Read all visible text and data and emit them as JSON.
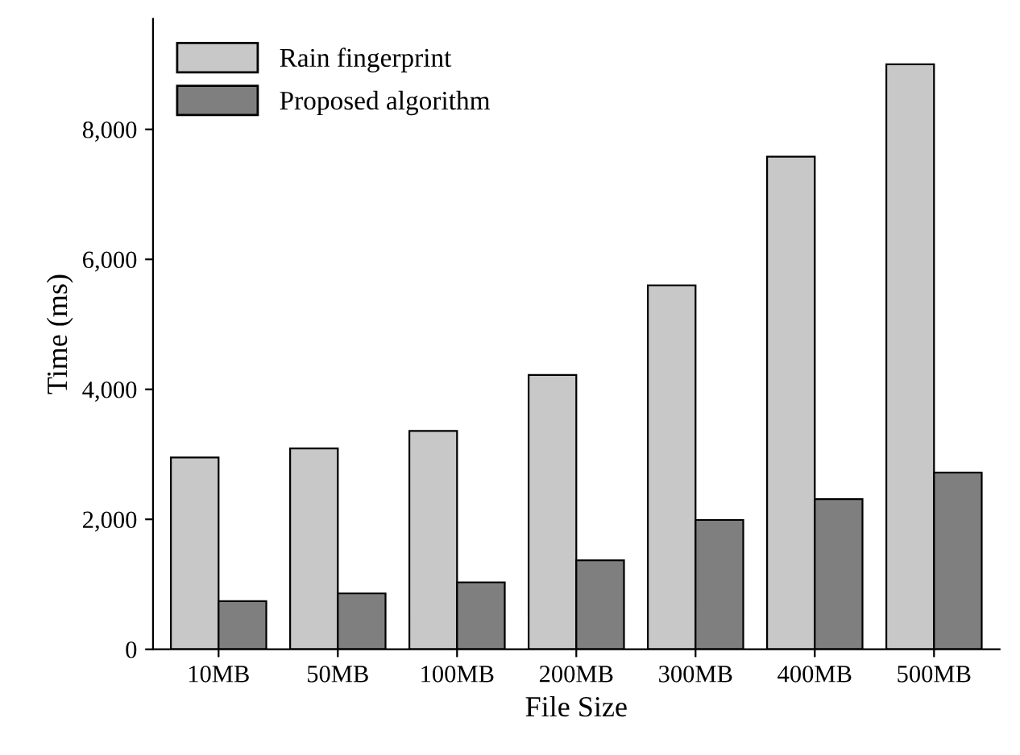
{
  "chart_data": {
    "type": "bar",
    "xlabel": "File Size",
    "ylabel": "Time (ms)",
    "categories": [
      "10MB",
      "50MB",
      "100MB",
      "200MB",
      "300MB",
      "400MB",
      "500MB"
    ],
    "series": [
      {
        "name": "Rain fingerprint",
        "color": "#c8c8c8",
        "values": [
          2950,
          3090,
          3360,
          4220,
          5600,
          7580,
          9000
        ]
      },
      {
        "name": "Proposed algorithm",
        "color": "#7f7f7f",
        "values": [
          740,
          860,
          1030,
          1370,
          1990,
          2310,
          2720
        ]
      }
    ],
    "ylim": [
      0,
      9700
    ],
    "yticks": [
      0,
      {
        "value": 2000,
        "label": "2,000"
      },
      {
        "value": 4000,
        "label": "4,000"
      },
      {
        "value": 6000,
        "label": "6,000"
      },
      {
        "value": 8000,
        "label": "8,000"
      }
    ],
    "grid": false,
    "legend": "top left"
  }
}
